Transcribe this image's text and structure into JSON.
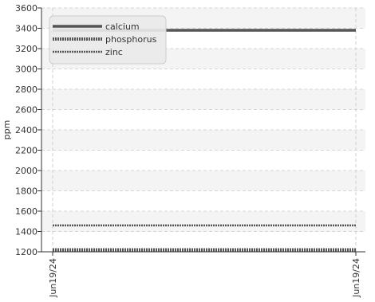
{
  "chart_data": {
    "type": "line",
    "title": "",
    "ylabel": "ppm",
    "xlabel": "",
    "ylim": [
      1200,
      3600
    ],
    "yticks": [
      1200,
      1400,
      1600,
      1800,
      2000,
      2200,
      2400,
      2600,
      2800,
      3000,
      3200,
      3400,
      3600
    ],
    "x_tick_labels": [
      "Jun19/24",
      "Jun19/24"
    ],
    "grid": true,
    "legend_position": "top-left",
    "series": [
      {
        "name": "calcium",
        "values": [
          3380,
          3380
        ],
        "color": "#555555",
        "style": "solid"
      },
      {
        "name": "phosphorus",
        "values": [
          1220,
          1220
        ],
        "color": "#555555",
        "style": "dotted-thick"
      },
      {
        "name": "zinc",
        "values": [
          1460,
          1460
        ],
        "color": "#555555",
        "style": "dotted-thin"
      }
    ]
  }
}
